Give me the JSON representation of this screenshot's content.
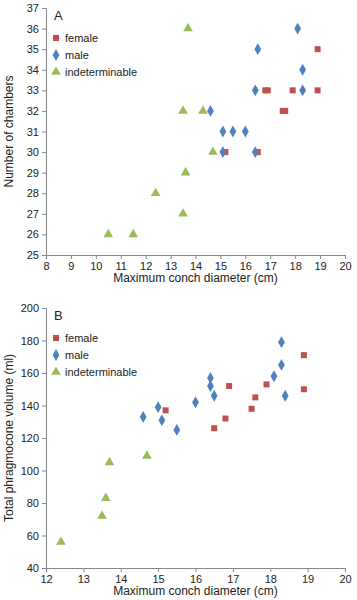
{
  "chart_data": [
    {
      "type": "scatter",
      "title": "A",
      "x_label": "Maximum conch diameter (cm)",
      "y_label": "Number of chambers",
      "xlim": [
        8,
        20
      ],
      "xticks": [
        8,
        9,
        10,
        11,
        12,
        13,
        14,
        15,
        16,
        17,
        18,
        19,
        20
      ],
      "ylim": [
        25,
        37
      ],
      "yticks": [
        25,
        26,
        27,
        28,
        29,
        30,
        31,
        32,
        33,
        34,
        35,
        36,
        37
      ],
      "legend": "top-left",
      "series": [
        {
          "name": "female",
          "color": "#c0504d",
          "marker": "square",
          "x": [
            15.2,
            16.5,
            16.8,
            16.9,
            17.5,
            17.6,
            17.9,
            18.9,
            18.9
          ],
          "values": [
            30,
            30,
            33,
            33,
            32,
            32,
            33,
            35,
            33
          ]
        },
        {
          "name": "male",
          "color": "#4f81bd",
          "marker": "diamond",
          "x": [
            14.6,
            15.1,
            15.1,
            15.5,
            16.0,
            16.4,
            16.5,
            16.4,
            18.1,
            18.3,
            18.3
          ],
          "values": [
            32,
            31,
            30,
            31,
            31,
            33,
            35,
            30,
            36,
            34,
            33
          ]
        },
        {
          "name": "indeterminable",
          "color": "#9bbb59",
          "marker": "triangle",
          "x": [
            10.5,
            11.5,
            12.4,
            13.5,
            13.5,
            13.6,
            13.7,
            14.3,
            14.7
          ],
          "values": [
            26,
            26,
            28,
            27,
            32,
            29,
            36,
            32,
            30
          ]
        }
      ]
    },
    {
      "type": "scatter",
      "title": "B",
      "x_label": "Maximum conch diameter (cm)",
      "y_label": "Total phragmocone volume (ml)",
      "xlim": [
        12,
        20
      ],
      "xticks": [
        12,
        13,
        14,
        15,
        16,
        17,
        18,
        19,
        20
      ],
      "ylim": [
        40,
        200
      ],
      "yticks": [
        40,
        60,
        80,
        100,
        120,
        140,
        160,
        180,
        200
      ],
      "legend": "top-left",
      "series": [
        {
          "name": "female",
          "color": "#c0504d",
          "marker": "square",
          "x": [
            15.2,
            16.5,
            16.8,
            16.9,
            17.5,
            17.6,
            17.9,
            18.9,
            18.9
          ],
          "values": [
            137,
            126,
            132,
            152,
            138,
            145,
            153,
            171,
            150
          ]
        },
        {
          "name": "male",
          "color": "#4f81bd",
          "marker": "diamond",
          "x": [
            14.6,
            15.0,
            15.1,
            15.5,
            16.0,
            16.4,
            16.4,
            16.5,
            18.1,
            18.3,
            18.3,
            18.4
          ],
          "values": [
            133,
            139,
            131,
            125,
            142,
            157,
            152,
            146,
            158,
            179,
            165,
            146
          ]
        },
        {
          "name": "indeterminable",
          "color": "#9bbb59",
          "marker": "triangle",
          "x": [
            12.4,
            13.5,
            13.6,
            13.7,
            14.7
          ],
          "values": [
            56,
            72,
            83,
            105,
            109
          ]
        }
      ]
    }
  ]
}
